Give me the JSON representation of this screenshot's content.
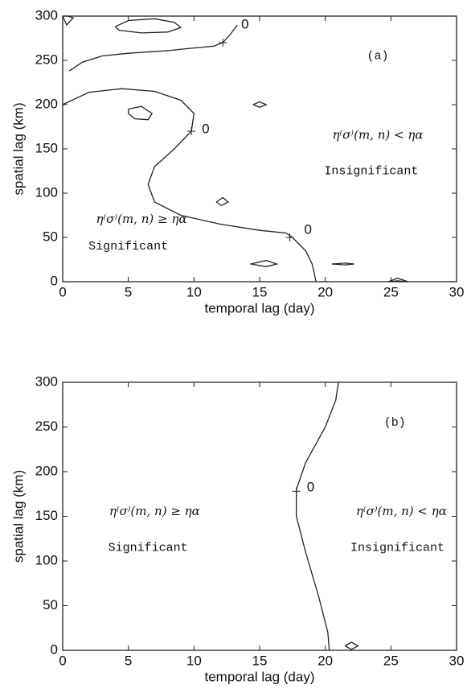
{
  "chart_data": [
    {
      "type": "contour",
      "xlabel": "temporal lag (day)",
      "ylabel": "spatial lag (km)",
      "xlim": [
        0,
        30
      ],
      "ylim": [
        0,
        300
      ],
      "xticks": [
        0,
        5,
        10,
        15,
        20,
        25,
        30
      ],
      "yticks": [
        0,
        50,
        100,
        150,
        200,
        250,
        300
      ],
      "color": "#222",
      "series": [
        {
          "x": [
            0,
            2,
            4.5,
            7,
            9,
            10,
            9.8,
            8.5,
            7,
            6.5,
            7,
            9,
            12,
            15,
            17,
            17.5,
            18.5,
            19,
            19.3
          ],
          "values": [
            200,
            214,
            218,
            215,
            205,
            190,
            170,
            150,
            130,
            110,
            90,
            75,
            65,
            58,
            55,
            50,
            35,
            20,
            0
          ]
        },
        {
          "x": [
            0.5,
            1.5,
            3,
            5,
            8,
            10,
            11.5,
            12.2,
            12.8,
            13.3
          ],
          "values": [
            238,
            248,
            255,
            258,
            261,
            264,
            266,
            270,
            280,
            290
          ]
        },
        {
          "x": [
            4,
            5,
            7,
            8.5,
            9,
            8,
            6,
            4.3,
            4
          ],
          "values": [
            288,
            295,
            297,
            293,
            287,
            282,
            281,
            284,
            288
          ]
        },
        {
          "x": [
            5,
            6,
            6.8,
            6.5,
            5.5,
            5,
            5
          ],
          "values": [
            195,
            198,
            190,
            183,
            184,
            190,
            195
          ]
        },
        {
          "x": [
            11.7,
            12.2,
            12.6,
            12.1,
            11.7
          ],
          "values": [
            90,
            95,
            90,
            86,
            90
          ]
        },
        {
          "x": [
            14.3,
            15.5,
            16.3,
            15.5,
            14.3
          ],
          "values": [
            20,
            24,
            20,
            17,
            20
          ]
        },
        {
          "x": [
            20.5,
            21.5,
            22.2,
            21.5,
            20.5
          ],
          "values": [
            20,
            21,
            20,
            19,
            20
          ]
        },
        {
          "x": [
            24.8,
            25.5,
            26.3,
            25.5,
            24.8
          ],
          "values": [
            0,
            4,
            0,
            1,
            0
          ]
        },
        {
          "x": [
            14.5,
            15,
            15.5,
            15,
            14.5
          ],
          "values": [
            200,
            203,
            200,
            197,
            200
          ]
        },
        {
          "x": [
            0,
            0.3,
            0.8,
            0.4,
            0
          ],
          "values": [
            300,
            290,
            298,
            300,
            300
          ]
        }
      ],
      "annotations": [
        {
          "text": "0"
        },
        {
          "text": "0"
        },
        {
          "text": "0"
        },
        {
          "text": "(a)"
        },
        {
          "text": "η⁽σ⁾(m, n) < ηα"
        },
        {
          "text": "Insignificant"
        },
        {
          "text": "η⁽σ⁾(m, n) ≥ ηα"
        },
        {
          "text": "Significant"
        }
      ]
    },
    {
      "type": "contour",
      "xlabel": "temporal lag (day)",
      "ylabel": "spatial lag (km)",
      "xlim": [
        0,
        30
      ],
      "ylim": [
        0,
        300
      ],
      "xticks": [
        0,
        5,
        10,
        15,
        20,
        25,
        30
      ],
      "yticks": [
        0,
        50,
        100,
        150,
        200,
        250,
        300
      ],
      "color": "#222",
      "series": [
        {
          "x": [
            21,
            20.8,
            20,
            18.5,
            17.8,
            17.8,
            18.5,
            19.5,
            20.2,
            20.3
          ],
          "values": [
            300,
            280,
            250,
            210,
            180,
            150,
            110,
            60,
            20,
            0
          ]
        },
        {
          "x": [
            21.5,
            22,
            22.5,
            22,
            21.5
          ],
          "values": [
            5,
            9,
            5,
            1,
            5
          ]
        }
      ],
      "annotations": [
        {
          "text": "0"
        },
        {
          "text": "(b)"
        },
        {
          "text": "η⁽σ⁾(m, n) ≥ ηα"
        },
        {
          "text": "Significant"
        },
        {
          "text": "η⁽σ⁾(m, n) < ηα"
        },
        {
          "text": "Insignificant"
        }
      ]
    }
  ]
}
